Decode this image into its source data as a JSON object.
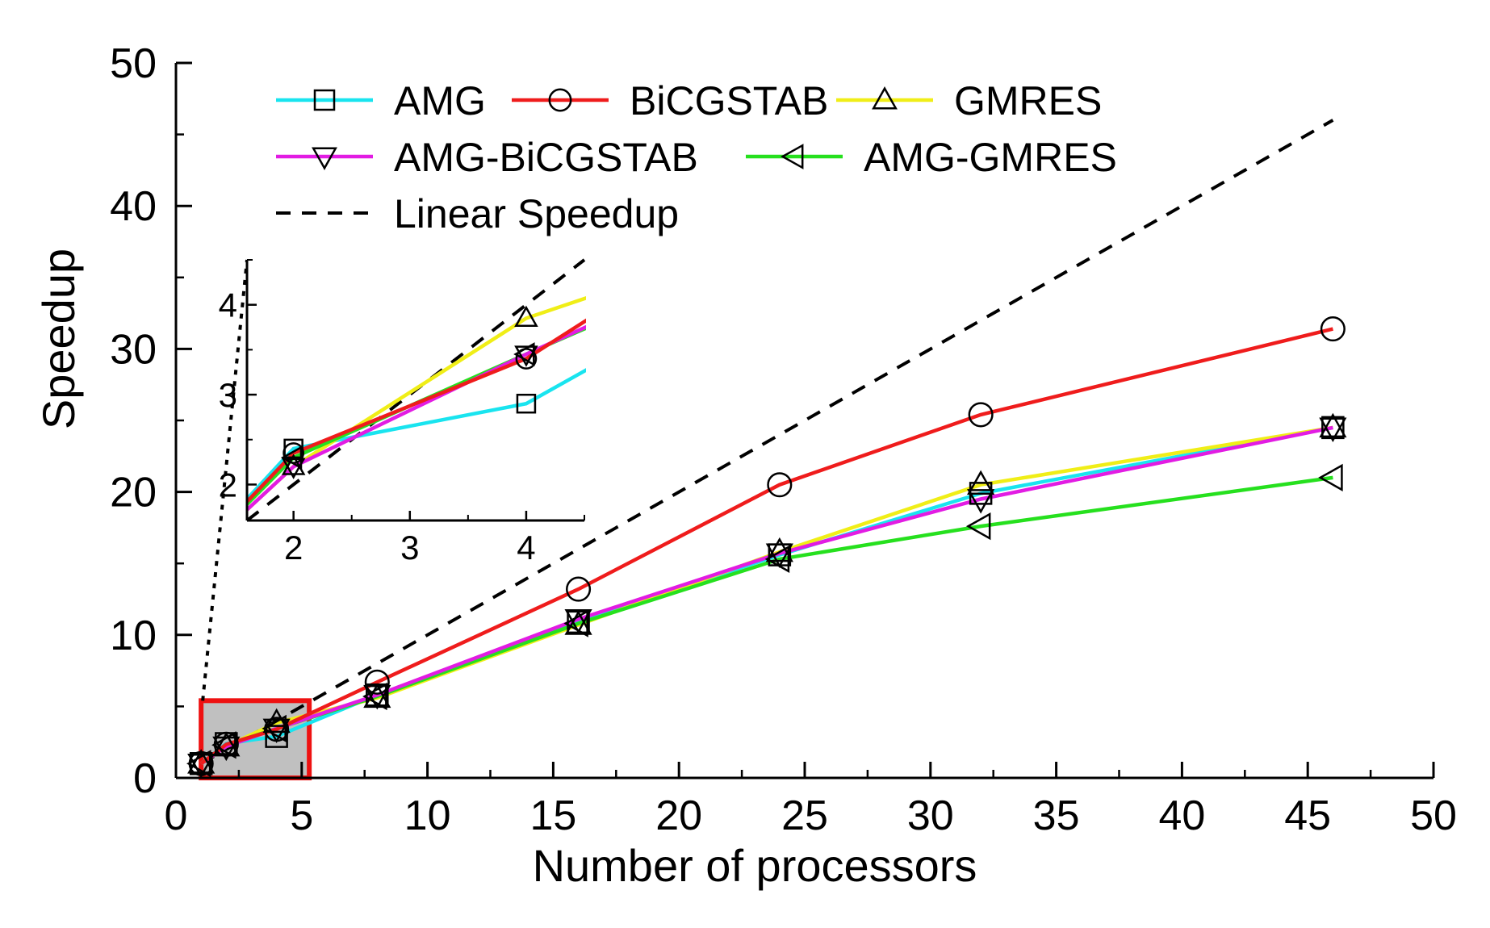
{
  "chart_data": {
    "type": "line",
    "xlabel": "Number of processors",
    "ylabel": "Speedup",
    "xlim": [
      0,
      50
    ],
    "ylim": [
      0,
      50
    ],
    "xticks": [
      "0",
      "5",
      "10",
      "15",
      "20",
      "25",
      "30",
      "35",
      "40",
      "45",
      "50"
    ],
    "yticks": [
      "0",
      "10",
      "20",
      "30",
      "40",
      "50"
    ],
    "grid": false,
    "legend_position": "top-left",
    "x": [
      1,
      2,
      4,
      8,
      16,
      24,
      32,
      46
    ],
    "series": [
      {
        "name": "AMG",
        "marker": "square",
        "color": "#19e4ef",
        "values": [
          1,
          2.4,
          2.9,
          5.8,
          10.9,
          15.6,
          19.9,
          24.5
        ]
      },
      {
        "name": "BiCGSTAB",
        "marker": "circle",
        "color": "#ef1c1c",
        "values": [
          1,
          2.35,
          3.4,
          6.7,
          13.2,
          20.5,
          25.4,
          31.4
        ]
      },
      {
        "name": "GMRES",
        "marker": "triangle-up",
        "color": "#f0ee17",
        "values": [
          1,
          2.2,
          3.85,
          5.6,
          10.7,
          15.8,
          20.5,
          24.5
        ]
      },
      {
        "name": "AMG-BiCGSTAB",
        "marker": "triangle-down",
        "color": "#e21ce3",
        "values": [
          1,
          2.2,
          3.45,
          5.8,
          11.1,
          15.7,
          19.5,
          24.5
        ]
      },
      {
        "name": "AMG-GMRES",
        "marker": "triangle-left",
        "color": "#26e01e",
        "values": [
          1,
          2.3,
          3.45,
          5.7,
          10.8,
          15.3,
          17.6,
          21.0
        ]
      },
      {
        "name": "Linear Speedup",
        "marker": "none",
        "color": "#000000",
        "dashed": true,
        "x": [
          1,
          46
        ],
        "values": [
          1,
          46
        ]
      }
    ],
    "inset": {
      "xlim": [
        1.6,
        4.5
      ],
      "ylim": [
        1.6,
        4.5
      ],
      "xticks": [
        "2",
        "3",
        "4"
      ],
      "yticks": [
        "2",
        "3",
        "4"
      ],
      "zoom_box": {
        "xlim": [
          1,
          5.3
        ],
        "ylim": [
          0,
          5.4
        ]
      }
    }
  },
  "colors": {
    "axis": "#000000",
    "zoom_box_fill": "#c0c0c0",
    "zoom_box_border": "#ee1111"
  }
}
